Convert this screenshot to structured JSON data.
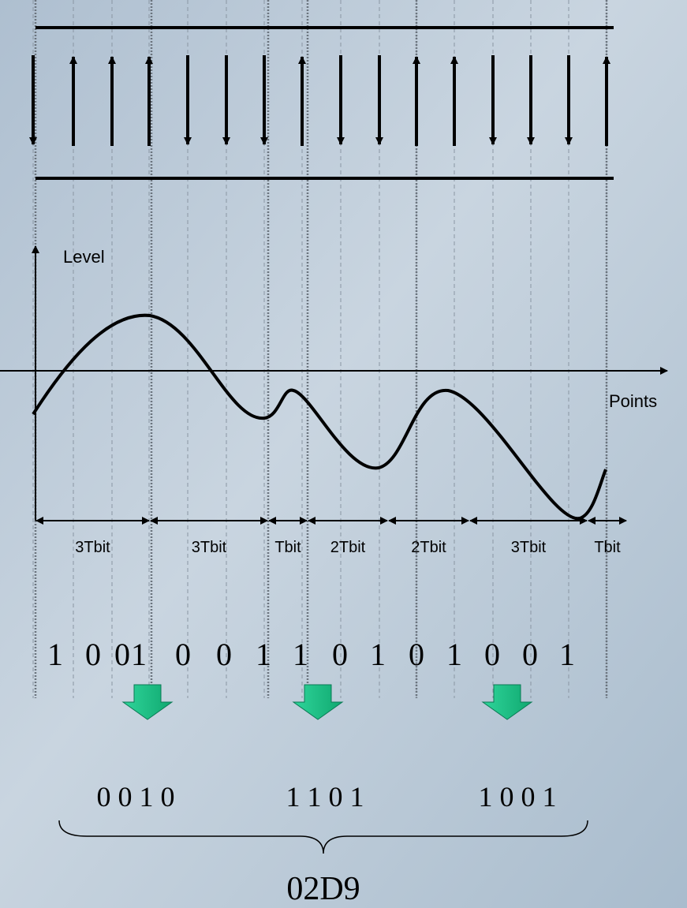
{
  "axis_labels": {
    "y": "Level",
    "x": "Points"
  },
  "intervals": [
    "3Tbit",
    "3Tbit",
    "Tbit",
    "2Tbit",
    "2Tbit",
    "3Tbit",
    "Tbit"
  ],
  "bits": [
    "1",
    "0",
    "0",
    "1",
    "0",
    "0",
    "1",
    "1",
    "0",
    "1",
    "0",
    "1",
    "0",
    "0",
    "1"
  ],
  "nibbles": [
    "0 0 1 0",
    "1 1 0 1",
    "1 0 0 1"
  ],
  "result": "02D9"
}
